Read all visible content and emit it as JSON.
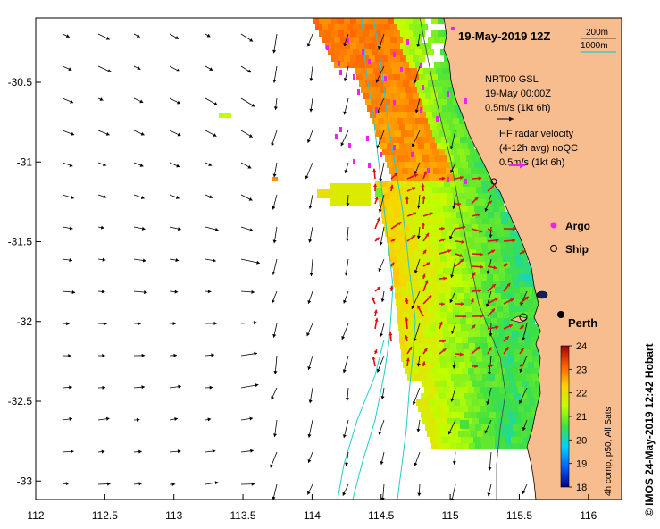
{
  "title": "19-May-2019 12Z",
  "scale": {
    "label_200m": "200m",
    "label_1000m": "1000m",
    "color_200m": "#222222",
    "color_1000m": "#22cccc"
  },
  "nrt_legend": {
    "line1": "NRT00 GSL",
    "line2": "19-May 00:00Z",
    "line3": "0.5m/s (1kt 6h)"
  },
  "hf_legend": {
    "line1": "HF radar velocity",
    "line2": "(4-12h avg) noQC",
    "line3": "0.5m/s (1kt 6h)"
  },
  "markers": {
    "argo": "Argo",
    "ship": "Ship",
    "argo_color": "#ee22ee"
  },
  "city": "Perth",
  "colorbar": {
    "title": "4h comp, p50, All Sats",
    "ticks": [
      "18",
      "19",
      "20",
      "21",
      "22",
      "23",
      "24"
    ],
    "stops": [
      "#000080",
      "#0060ff",
      "#00d0ff",
      "#40e040",
      "#c0ff00",
      "#ffd000",
      "#ff6000",
      "#a00000"
    ]
  },
  "credit": "© IMOS 24-May-2019 12:42 Hobart",
  "x_axis": {
    "ticks": [
      "112",
      "112.5",
      "113",
      "113.5",
      "114",
      "114.5",
      "115",
      "115.5",
      "116"
    ]
  },
  "y_axis": {
    "ticks": [
      "-30.5",
      "-31",
      "-31.5",
      "-32",
      "-32.5",
      "-33"
    ]
  },
  "colors": {
    "land": "#f7bd8e",
    "ocean": "#ffffff",
    "vector": "#000000",
    "hf_vector": "#dd1111",
    "contour": "#22cccc"
  }
}
